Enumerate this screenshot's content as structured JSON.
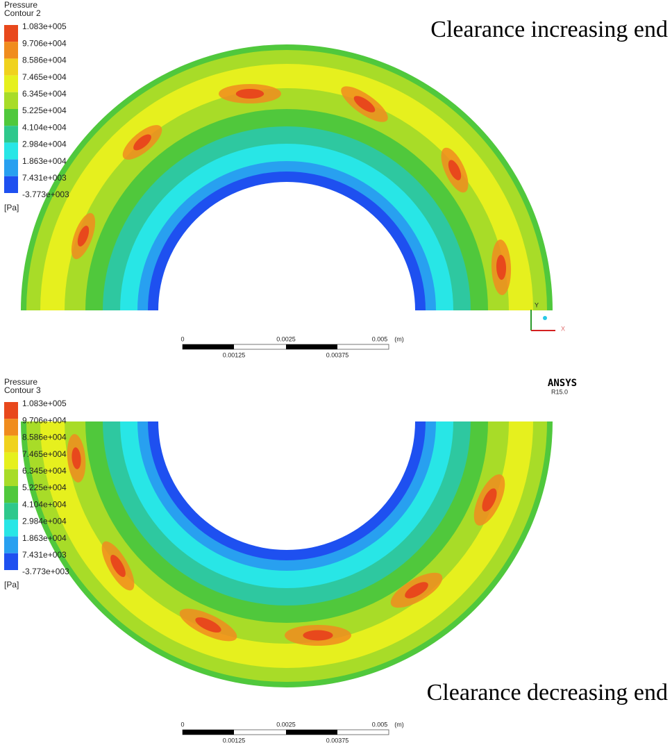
{
  "panels": [
    {
      "legend": {
        "variable": "Pressure",
        "name": "Contour 2",
        "labels": [
          "1.083e+005",
          "9.706e+004",
          "8.586e+004",
          "7.465e+004",
          "6.345e+004",
          "5.225e+004",
          "4.104e+004",
          "2.984e+004",
          "1.863e+004",
          "7.431e+003",
          "-3.773e+003"
        ],
        "unit": "[Pa]"
      },
      "caption": "Clearance increasing end",
      "scale": {
        "top": [
          "0",
          "0.0025",
          "0.005",
          "(m)"
        ],
        "bottom": [
          "0.00125",
          "0.00375"
        ]
      },
      "axes": [
        "Y",
        "X"
      ]
    },
    {
      "legend": {
        "variable": "Pressure",
        "name": "Contour 3",
        "labels": [
          "1.083e+005",
          "9.706e+004",
          "8.586e+004",
          "7.465e+004",
          "6.345e+004",
          "5.225e+004",
          "4.104e+004",
          "2.984e+004",
          "1.863e+004",
          "7.431e+003",
          "-3.773e+003"
        ],
        "unit": "[Pa]"
      },
      "caption": "Clearance decreasing end",
      "scale": {
        "top": [
          "0",
          "0.0025",
          "0.005",
          "(m)"
        ],
        "bottom": [
          "0.00125",
          "0.00375"
        ]
      }
    }
  ],
  "branding": {
    "product": "ANSYS",
    "version": "R15.0"
  }
}
